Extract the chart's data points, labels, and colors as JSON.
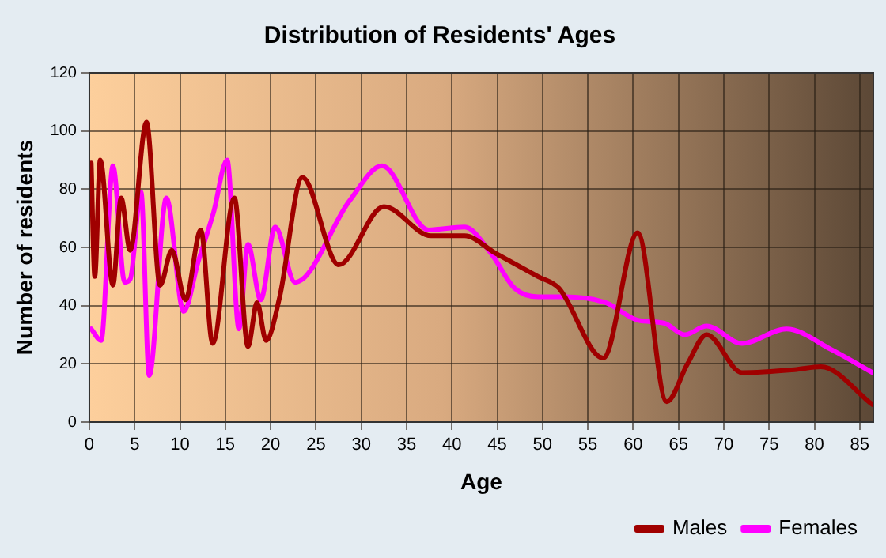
{
  "chart_data": {
    "type": "line",
    "title": "Distribution of Residents' Ages",
    "xlabel": "Age",
    "ylabel": "Number of residents",
    "xlim": [
      0,
      86.5
    ],
    "xticks": [
      0,
      5,
      10,
      15,
      20,
      25,
      30,
      35,
      40,
      45,
      50,
      55,
      60,
      65,
      70,
      75,
      80,
      85
    ],
    "ylim": [
      0,
      120
    ],
    "yticks": [
      0,
      20,
      40,
      60,
      80,
      100,
      120
    ],
    "grid": true,
    "legend": "bottom right",
    "marker": "none",
    "line_style": "solid",
    "series": [
      {
        "name": "Males",
        "color": "#a00000",
        "x": [
          0.2,
          0.6,
          1.2,
          2.6,
          3.5,
          4.5,
          6.3,
          7.8,
          9.1,
          10.6,
          12.3,
          13.6,
          16.0,
          17.5,
          18.5,
          19.5,
          21.0,
          23.5,
          27.5,
          32.5,
          37.7,
          41.4,
          44.8,
          49.5,
          51.8,
          56.7,
          60.5,
          63.7,
          66.0,
          68.1,
          72.0,
          77.8,
          80.7,
          86.4
        ],
        "values": [
          89,
          50,
          90,
          47,
          77,
          59,
          103,
          47,
          59,
          42,
          66,
          27,
          77,
          26,
          41,
          28,
          43,
          84,
          54,
          74,
          64,
          64,
          58,
          50,
          46,
          22,
          65,
          7,
          20,
          30,
          17,
          18,
          19,
          6
        ]
      },
      {
        "name": "Females",
        "color": "#ff00ff",
        "x": [
          0.2,
          1.3,
          2.6,
          3.9,
          4.5,
          5.7,
          6.6,
          8.5,
          10.4,
          12.0,
          13.7,
          15.2,
          16.5,
          17.5,
          18.9,
          20.5,
          22.7,
          28.7,
          32.3,
          37.4,
          41.4,
          44.3,
          46.9,
          49.5,
          52.4,
          57.0,
          60.5,
          63.4,
          65.7,
          68.1,
          72.0,
          76.9,
          81.8,
          86.4
        ],
        "values": [
          32,
          28,
          88,
          48,
          49,
          79,
          16,
          77,
          38,
          55,
          72,
          90,
          32,
          61,
          42,
          67,
          48,
          76,
          88,
          66,
          67,
          58,
          46,
          43,
          43,
          41,
          35,
          34,
          30,
          33,
          27,
          32,
          25,
          17
        ]
      }
    ]
  }
}
